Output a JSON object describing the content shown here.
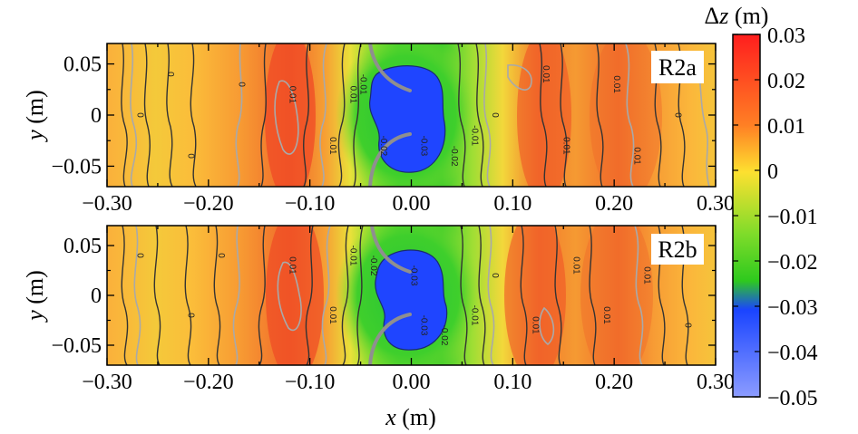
{
  "chart_data": {
    "type": "heatmap",
    "colorbar": {
      "label_prefix": "Δ",
      "label_var": "z",
      "label_suffix": " (m)",
      "ticks": [
        "0.03",
        "0.02",
        "0.01",
        "0",
        "−0.01",
        "−0.02",
        "−0.03",
        "−0.04",
        "−0.05"
      ],
      "tick_values": [
        0.03,
        0.02,
        0.01,
        0,
        -0.01,
        -0.02,
        -0.03,
        -0.04,
        -0.05
      ],
      "range": [
        -0.05,
        0.03
      ],
      "colors": [
        "#ff1e1e",
        "#ff7f24",
        "#fde030",
        "#2ec91e",
        "#1a44ff",
        "#8c9cff"
      ]
    },
    "x_axis": {
      "label_var": "x",
      "label_unit": " (m)",
      "range": [
        -0.3,
        0.3
      ],
      "tick_labels": [
        "−0.30",
        "−0.20",
        "−0.10",
        "0.00",
        "0.10",
        "0.20",
        "0.30"
      ]
    },
    "y_axis": {
      "label_var": "y",
      "label_unit": " (m)",
      "range": [
        -0.07,
        0.07
      ],
      "tick_labels": [
        "0.05",
        "0",
        "−0.05"
      ],
      "tick_values": [
        0.05,
        0,
        -0.05
      ]
    },
    "panels": [
      {
        "name": "R2a",
        "contour_labels": [
          {
            "text": "0",
            "x": -0.24,
            "y": 0.04
          },
          {
            "text": "0",
            "x": -0.27,
            "y": 0.0
          },
          {
            "text": "0",
            "x": -0.22,
            "y": -0.04
          },
          {
            "text": "0",
            "x": -0.17,
            "y": 0.03
          },
          {
            "text": "0.01",
            "x": -0.12,
            "y": 0.02
          },
          {
            "text": "0.01",
            "x": -0.08,
            "y": -0.03
          },
          {
            "text": "0.01",
            "x": -0.06,
            "y": 0.02
          },
          {
            "text": "-0.01",
            "x": -0.05,
            "y": 0.03
          },
          {
            "text": "-0.02",
            "x": -0.03,
            "y": -0.03
          },
          {
            "text": "-0.03",
            "x": 0.01,
            "y": -0.03
          },
          {
            "text": "-0.02",
            "x": 0.04,
            "y": -0.04
          },
          {
            "text": "-0.01",
            "x": 0.06,
            "y": -0.02
          },
          {
            "text": "0",
            "x": 0.08,
            "y": 0.0
          },
          {
            "text": "0.01",
            "x": 0.13,
            "y": 0.04
          },
          {
            "text": "0.01",
            "x": 0.15,
            "y": -0.03
          },
          {
            "text": "0.01",
            "x": 0.2,
            "y": 0.03
          },
          {
            "text": "0.01",
            "x": 0.22,
            "y": -0.04
          },
          {
            "text": "0",
            "x": 0.26,
            "y": 0.0
          }
        ]
      },
      {
        "name": "R2b",
        "contour_labels": [
          {
            "text": "0",
            "x": -0.27,
            "y": 0.04
          },
          {
            "text": "0",
            "x": -0.22,
            "y": -0.02
          },
          {
            "text": "0",
            "x": -0.19,
            "y": 0.04
          },
          {
            "text": "0.01",
            "x": -0.12,
            "y": 0.03
          },
          {
            "text": "0.01",
            "x": -0.08,
            "y": -0.02
          },
          {
            "text": "-0.01",
            "x": -0.06,
            "y": 0.04
          },
          {
            "text": "-0.02",
            "x": -0.04,
            "y": 0.03
          },
          {
            "text": "-0.03",
            "x": 0.0,
            "y": 0.02
          },
          {
            "text": "-0.03",
            "x": 0.01,
            "y": -0.03
          },
          {
            "text": "-0.02",
            "x": 0.03,
            "y": -0.04
          },
          {
            "text": "-0.01",
            "x": 0.06,
            "y": -0.02
          },
          {
            "text": "0",
            "x": 0.08,
            "y": 0.02
          },
          {
            "text": "0.01",
            "x": 0.12,
            "y": -0.03
          },
          {
            "text": "0.01",
            "x": 0.16,
            "y": 0.03
          },
          {
            "text": "0.01",
            "x": 0.19,
            "y": -0.02
          },
          {
            "text": "0.01",
            "x": 0.23,
            "y": 0.02
          },
          {
            "text": "0",
            "x": 0.27,
            "y": -0.03
          }
        ]
      }
    ]
  }
}
